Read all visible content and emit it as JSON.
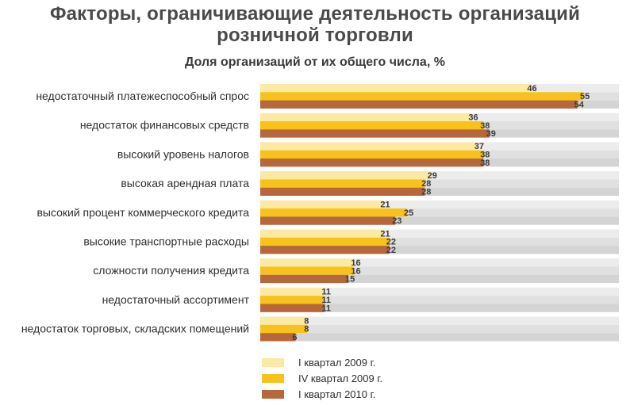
{
  "chart_data": {
    "type": "bar",
    "orientation": "horizontal",
    "title_line1": "Факторы, ограничивающие деятельность организаций",
    "title_line2": "розничной торговли",
    "subtitle": "Доля организаций от их общего числа, %",
    "categories": [
      "недостаточный платежеспособный спрос",
      "недостаток финансовых средств",
      "высокий уровень налогов",
      "высокая арендная плата",
      "высокий процент коммерческого кредита",
      "высокие транспортные расходы",
      "сложности получения кредита",
      "недостаточный ассортимент",
      "недостаток торговых, складских помещений"
    ],
    "series": [
      {
        "name": "I квартал 2009 г.",
        "color": "#fbe9a4",
        "values": [
          46,
          36,
          37,
          29,
          21,
          21,
          16,
          11,
          8
        ]
      },
      {
        "name": "IV квартал 2009 г.",
        "color": "#f7c21a",
        "values": [
          55,
          38,
          38,
          28,
          25,
          22,
          16,
          11,
          8
        ]
      },
      {
        "name": "I квартал 2010 г.",
        "color": "#b6673b",
        "values": [
          54,
          39,
          38,
          28,
          23,
          22,
          15,
          11,
          6
        ]
      }
    ],
    "xlim": [
      0,
      62
    ],
    "grid": false,
    "legend_position": "bottom"
  }
}
